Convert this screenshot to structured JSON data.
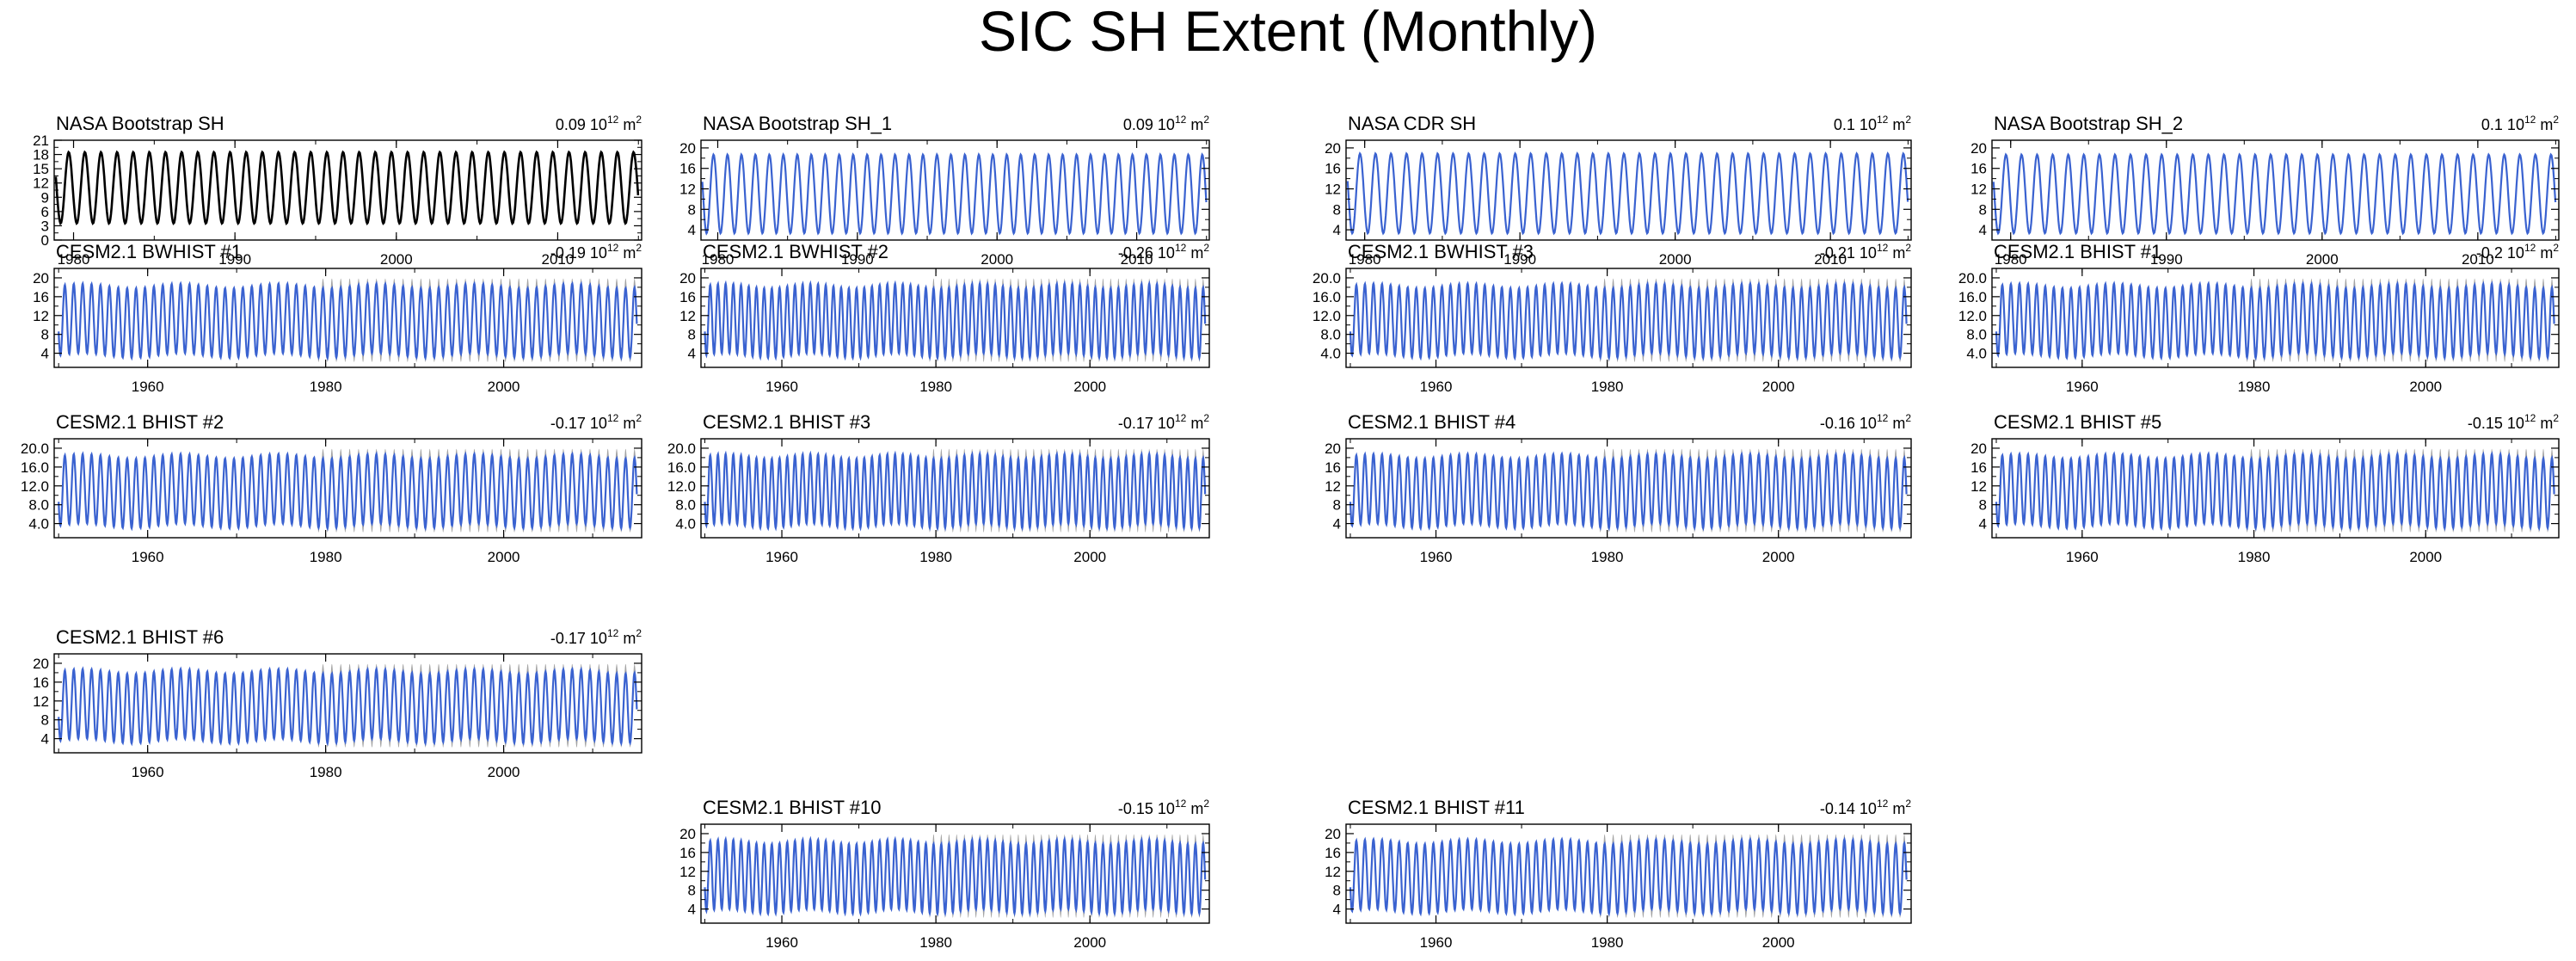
{
  "title": "SIC SH Extent (Monthly)",
  "colors": {
    "obs_line": "#000000",
    "model_line": "#3a62d0",
    "ensemble_band": "#9a9a9a",
    "axis": "#000000"
  },
  "chart_data": [
    {
      "type": "line",
      "title": "NASA Bootstrap SH",
      "trend_value": "0.09",
      "trend_unit": "10",
      "trend_exp": "12",
      "trend_suffix": "m",
      "trend_suffix_exp": "2",
      "line_color": "obs",
      "band": false,
      "x_range": [
        1978.8,
        2015.2
      ],
      "ylim": [
        0,
        21
      ],
      "y_ticks": [
        0,
        3,
        6,
        9,
        12,
        15,
        18,
        21
      ],
      "y_tick_labels": [
        "0",
        "3",
        "6",
        "9",
        "12",
        "15",
        "18",
        "21"
      ],
      "x_ticks": [
        1980,
        1990,
        2000,
        2010
      ],
      "x_tick_labels": [
        "1980",
        "1990",
        "2000",
        "2010"
      ],
      "seasonal_min": 3.5,
      "seasonal_max": 18.5,
      "series": [
        {
          "name": "NASA Bootstrap SH",
          "x_start": 1978.9,
          "x_end": 2015.0,
          "min": 3.5,
          "max": 18.5
        }
      ]
    },
    {
      "type": "line",
      "title": "NASA Bootstrap SH_1",
      "trend_value": "0.09",
      "trend_unit": "10",
      "trend_exp": "12",
      "trend_suffix": "m",
      "trend_suffix_exp": "2",
      "line_color": "model",
      "band": false,
      "x_range": [
        1978.8,
        2015.2
      ],
      "ylim": [
        2,
        21.5
      ],
      "y_ticks": [
        4,
        8,
        12,
        16,
        20
      ],
      "y_tick_labels": [
        "4",
        "8",
        "12",
        "16",
        "20"
      ],
      "x_ticks": [
        1980,
        1990,
        2000,
        2010
      ],
      "x_tick_labels": [
        "1980",
        "1990",
        "2000",
        "2010"
      ],
      "seasonal_min": 3.3,
      "seasonal_max": 18.7,
      "series": [
        {
          "name": "NASA Bootstrap SH_1",
          "x_start": 1978.9,
          "x_end": 2015.0,
          "min": 3.3,
          "max": 18.7
        }
      ]
    },
    {
      "type": "line",
      "title": "NASA CDR SH",
      "trend_value": "0.1",
      "trend_unit": "10",
      "trend_exp": "12",
      "trend_suffix": "m",
      "trend_suffix_exp": "2",
      "line_color": "model",
      "band": false,
      "x_range": [
        1978.8,
        2015.2
      ],
      "ylim": [
        2,
        21.5
      ],
      "y_ticks": [
        4,
        8,
        12,
        16,
        20
      ],
      "y_tick_labels": [
        "4",
        "8",
        "12",
        "16",
        "20"
      ],
      "x_ticks": [
        1980,
        1990,
        2000,
        2010
      ],
      "x_tick_labels": [
        "1980",
        "1990",
        "2000",
        "2010"
      ],
      "seasonal_min": 3.3,
      "seasonal_max": 18.9,
      "series": [
        {
          "name": "NASA CDR SH",
          "x_start": 1978.9,
          "x_end": 2015.0,
          "min": 3.3,
          "max": 18.9
        }
      ]
    },
    {
      "type": "line",
      "title": "NASA Bootstrap SH_2",
      "trend_value": "0.1",
      "trend_unit": "10",
      "trend_exp": "12",
      "trend_suffix": "m",
      "trend_suffix_exp": "2",
      "line_color": "model",
      "band": false,
      "x_range": [
        1978.8,
        2015.2
      ],
      "ylim": [
        2,
        21.5
      ],
      "y_ticks": [
        4,
        8,
        12,
        16,
        20
      ],
      "y_tick_labels": [
        "4",
        "8",
        "12",
        "16",
        "20"
      ],
      "x_ticks": [
        1980,
        1990,
        2000,
        2010
      ],
      "x_tick_labels": [
        "1980",
        "1990",
        "2000",
        "2010"
      ],
      "seasonal_min": 3.3,
      "seasonal_max": 18.7,
      "series": [
        {
          "name": "NASA Bootstrap SH_2",
          "x_start": 1978.9,
          "x_end": 2015.0,
          "min": 3.3,
          "max": 18.7
        }
      ]
    },
    {
      "type": "line",
      "title": "CESM2.1 BWHIST #1",
      "trend_value": "-0.19",
      "trend_unit": "10",
      "trend_exp": "12",
      "trend_suffix": "m",
      "trend_suffix_exp": "2",
      "line_color": "model",
      "band": true,
      "x_range": [
        1949.5,
        2015.5
      ],
      "ylim": [
        1,
        22
      ],
      "y_ticks": [
        4,
        8,
        12,
        16,
        20
      ],
      "y_tick_labels": [
        "4",
        "8",
        "12",
        "16",
        "20"
      ],
      "x_ticks": [
        1960,
        1980,
        2000
      ],
      "x_tick_labels": [
        "1960",
        "1980",
        "2000"
      ],
      "seasonal_min": 3.5,
      "seasonal_max": 18.3,
      "series": [
        {
          "name": "CESM2.1 BWHIST #1",
          "x_start": 1950,
          "x_end": 2015,
          "min": 3.5,
          "max": 18.3
        }
      ]
    },
    {
      "type": "line",
      "title": "CESM2.1 BWHIST #2",
      "trend_value": "-0.26",
      "trend_unit": "10",
      "trend_exp": "12",
      "trend_suffix": "m",
      "trend_suffix_exp": "2",
      "line_color": "model",
      "band": true,
      "x_range": [
        1949.5,
        2015.5
      ],
      "ylim": [
        1,
        22
      ],
      "y_ticks": [
        4,
        8,
        12,
        16,
        20
      ],
      "y_tick_labels": [
        "4",
        "8",
        "12",
        "16",
        "20"
      ],
      "x_ticks": [
        1960,
        1980,
        2000
      ],
      "x_tick_labels": [
        "1960",
        "1980",
        "2000"
      ],
      "seasonal_min": 3.5,
      "seasonal_max": 18.3,
      "series": [
        {
          "name": "CESM2.1 BWHIST #2",
          "x_start": 1950,
          "x_end": 2015,
          "min": 3.5,
          "max": 18.3
        }
      ]
    },
    {
      "type": "line",
      "title": "CESM2.1 BWHIST #3",
      "trend_value": "-0.21",
      "trend_unit": "10",
      "trend_exp": "12",
      "trend_suffix": "m",
      "trend_suffix_exp": "2",
      "line_color": "model",
      "band": true,
      "x_range": [
        1949.5,
        2015.5
      ],
      "ylim": [
        1,
        22
      ],
      "y_ticks": [
        4,
        8,
        12,
        16,
        20
      ],
      "y_tick_labels": [
        "4.0",
        "8.0",
        "12.0",
        "16.0",
        "20.0"
      ],
      "x_ticks": [
        1960,
        1980,
        2000
      ],
      "x_tick_labels": [
        "1960",
        "1980",
        "2000"
      ],
      "seasonal_min": 3.5,
      "seasonal_max": 18.3,
      "series": [
        {
          "name": "CESM2.1 BWHIST #3",
          "x_start": 1950,
          "x_end": 2015,
          "min": 3.5,
          "max": 18.3
        }
      ]
    },
    {
      "type": "line",
      "title": "CESM2.1 BHIST #1",
      "trend_value": "-0.2",
      "trend_unit": "10",
      "trend_exp": "12",
      "trend_suffix": "m",
      "trend_suffix_exp": "2",
      "line_color": "model",
      "band": true,
      "x_range": [
        1949.5,
        2015.5
      ],
      "ylim": [
        1,
        22
      ],
      "y_ticks": [
        4,
        8,
        12,
        16,
        20
      ],
      "y_tick_labels": [
        "4.0",
        "8.0",
        "12.0",
        "16.0",
        "20.0"
      ],
      "x_ticks": [
        1960,
        1980,
        2000
      ],
      "x_tick_labels": [
        "1960",
        "1980",
        "2000"
      ],
      "seasonal_min": 3.5,
      "seasonal_max": 18.3,
      "series": [
        {
          "name": "CESM2.1 BHIST #1",
          "x_start": 1950,
          "x_end": 2015,
          "min": 3.5,
          "max": 18.3
        }
      ]
    },
    {
      "type": "line",
      "title": "CESM2.1 BHIST #2",
      "trend_value": "-0.17",
      "trend_unit": "10",
      "trend_exp": "12",
      "trend_suffix": "m",
      "trend_suffix_exp": "2",
      "line_color": "model",
      "band": true,
      "x_range": [
        1949.5,
        2015.5
      ],
      "ylim": [
        1,
        22
      ],
      "y_ticks": [
        4,
        8,
        12,
        16,
        20
      ],
      "y_tick_labels": [
        "4.0",
        "8.0",
        "12.0",
        "16.0",
        "20.0"
      ],
      "x_ticks": [
        1960,
        1980,
        2000
      ],
      "x_tick_labels": [
        "1960",
        "1980",
        "2000"
      ],
      "seasonal_min": 3.5,
      "seasonal_max": 18.3,
      "series": [
        {
          "name": "CESM2.1 BHIST #2",
          "x_start": 1950,
          "x_end": 2015,
          "min": 3.5,
          "max": 18.3
        }
      ]
    },
    {
      "type": "line",
      "title": "CESM2.1 BHIST #3",
      "trend_value": "-0.17",
      "trend_unit": "10",
      "trend_exp": "12",
      "trend_suffix": "m",
      "trend_suffix_exp": "2",
      "line_color": "model",
      "band": true,
      "x_range": [
        1949.5,
        2015.5
      ],
      "ylim": [
        1,
        22
      ],
      "y_ticks": [
        4,
        8,
        12,
        16,
        20
      ],
      "y_tick_labels": [
        "4.0",
        "8.0",
        "12.0",
        "16.0",
        "20.0"
      ],
      "x_ticks": [
        1960,
        1980,
        2000
      ],
      "x_tick_labels": [
        "1960",
        "1980",
        "2000"
      ],
      "seasonal_min": 3.5,
      "seasonal_max": 18.3,
      "series": [
        {
          "name": "CESM2.1 BHIST #3",
          "x_start": 1950,
          "x_end": 2015,
          "min": 3.5,
          "max": 18.3
        }
      ]
    },
    {
      "type": "line",
      "title": "CESM2.1 BHIST #4",
      "trend_value": "-0.16",
      "trend_unit": "10",
      "trend_exp": "12",
      "trend_suffix": "m",
      "trend_suffix_exp": "2",
      "line_color": "model",
      "band": true,
      "x_range": [
        1949.5,
        2015.5
      ],
      "ylim": [
        1,
        22
      ],
      "y_ticks": [
        4,
        8,
        12,
        16,
        20
      ],
      "y_tick_labels": [
        "4",
        "8",
        "12",
        "16",
        "20"
      ],
      "x_ticks": [
        1960,
        1980,
        2000
      ],
      "x_tick_labels": [
        "1960",
        "1980",
        "2000"
      ],
      "seasonal_min": 3.5,
      "seasonal_max": 18.3,
      "series": [
        {
          "name": "CESM2.1 BHIST #4",
          "x_start": 1950,
          "x_end": 2015,
          "min": 3.5,
          "max": 18.3
        }
      ]
    },
    {
      "type": "line",
      "title": "CESM2.1 BHIST #5",
      "trend_value": "-0.15",
      "trend_unit": "10",
      "trend_exp": "12",
      "trend_suffix": "m",
      "trend_suffix_exp": "2",
      "line_color": "model",
      "band": true,
      "x_range": [
        1949.5,
        2015.5
      ],
      "ylim": [
        1,
        22
      ],
      "y_ticks": [
        4,
        8,
        12,
        16,
        20
      ],
      "y_tick_labels": [
        "4",
        "8",
        "12",
        "16",
        "20"
      ],
      "x_ticks": [
        1960,
        1980,
        2000
      ],
      "x_tick_labels": [
        "1960",
        "1980",
        "2000"
      ],
      "seasonal_min": 3.5,
      "seasonal_max": 18.3,
      "series": [
        {
          "name": "CESM2.1 BHIST #5",
          "x_start": 1950,
          "x_end": 2015,
          "min": 3.5,
          "max": 18.3
        }
      ]
    },
    {
      "type": "line",
      "title": "CESM2.1 BHIST #6",
      "trend_value": "-0.17",
      "trend_unit": "10",
      "trend_exp": "12",
      "trend_suffix": "m",
      "trend_suffix_exp": "2",
      "line_color": "model",
      "band": true,
      "x_range": [
        1949.5,
        2015.5
      ],
      "ylim": [
        1,
        22
      ],
      "y_ticks": [
        4,
        8,
        12,
        16,
        20
      ],
      "y_tick_labels": [
        "4",
        "8",
        "12",
        "16",
        "20"
      ],
      "x_ticks": [
        1960,
        1980,
        2000
      ],
      "x_tick_labels": [
        "1960",
        "1980",
        "2000"
      ],
      "seasonal_min": 3.5,
      "seasonal_max": 18.3,
      "series": [
        {
          "name": "CESM2.1 BHIST #6",
          "x_start": 1950,
          "x_end": 2015,
          "min": 3.5,
          "max": 18.3
        }
      ]
    },
    {
      "type": "line",
      "title": "CESM2.1 BHIST #10",
      "trend_value": "-0.15",
      "trend_unit": "10",
      "trend_exp": "12",
      "trend_suffix": "m",
      "trend_suffix_exp": "2",
      "line_color": "model",
      "band": true,
      "x_range": [
        1949.5,
        2015.5
      ],
      "ylim": [
        1,
        22
      ],
      "y_ticks": [
        4,
        8,
        12,
        16,
        20
      ],
      "y_tick_labels": [
        "4",
        "8",
        "12",
        "16",
        "20"
      ],
      "x_ticks": [
        1960,
        1980,
        2000
      ],
      "x_tick_labels": [
        "1960",
        "1980",
        "2000"
      ],
      "seasonal_min": 3.5,
      "seasonal_max": 18.3,
      "series": [
        {
          "name": "CESM2.1 BHIST #10",
          "x_start": 1950,
          "x_end": 2015,
          "min": 3.5,
          "max": 18.3
        }
      ]
    },
    {
      "type": "line",
      "title": "CESM2.1 BHIST #11",
      "trend_value": "-0.14",
      "trend_unit": "10",
      "trend_exp": "12",
      "trend_suffix": "m",
      "trend_suffix_exp": "2",
      "line_color": "model",
      "band": true,
      "x_range": [
        1949.5,
        2015.5
      ],
      "ylim": [
        1,
        22
      ],
      "y_ticks": [
        4,
        8,
        12,
        16,
        20
      ],
      "y_tick_labels": [
        "4",
        "8",
        "12",
        "16",
        "20"
      ],
      "x_ticks": [
        1960,
        1980,
        2000
      ],
      "x_tick_labels": [
        "1960",
        "1980",
        "2000"
      ],
      "seasonal_min": 3.5,
      "seasonal_max": 18.3,
      "series": [
        {
          "name": "CESM2.1 BHIST #11",
          "x_start": 1950,
          "x_end": 2015,
          "min": 3.5,
          "max": 18.3
        }
      ]
    }
  ]
}
